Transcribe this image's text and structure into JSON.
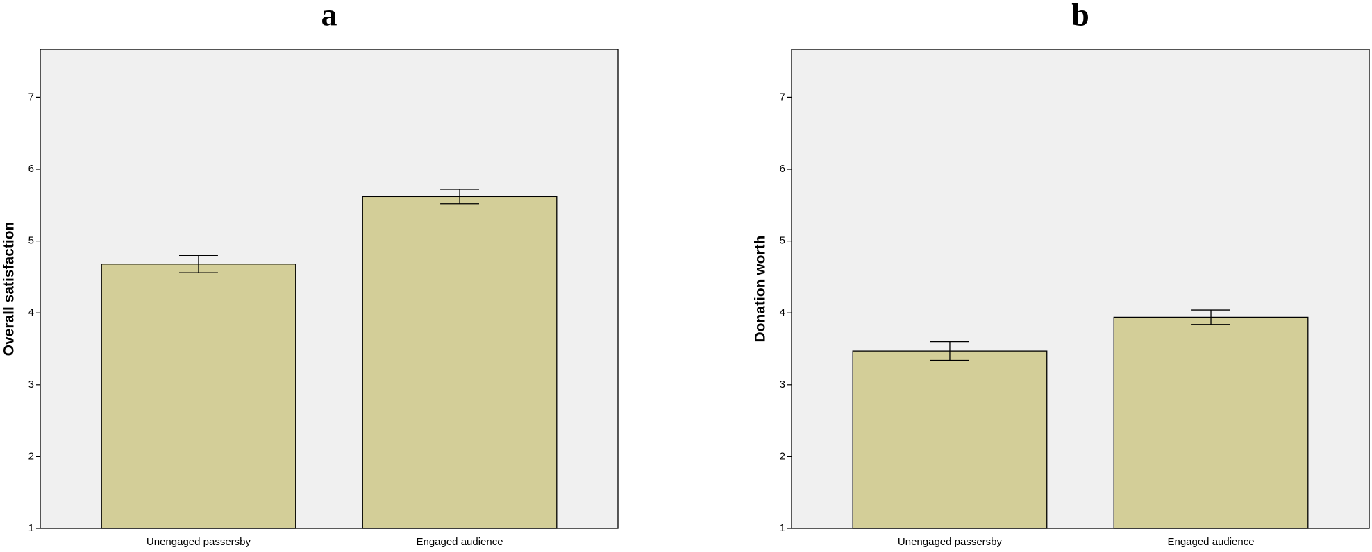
{
  "chart_data": [
    {
      "type": "bar",
      "title": "a",
      "y_label": "Overall satisfaction",
      "categories": [
        "Unengaged passersby",
        "Engaged audience"
      ],
      "values": [
        4.68,
        5.62
      ],
      "errors": [
        0.12,
        0.1
      ],
      "color": "#d3ce98",
      "ylim": [
        1,
        7.67
      ],
      "yticks": [
        1,
        2,
        3,
        4,
        5,
        6,
        7
      ]
    },
    {
      "type": "bar",
      "title": "b",
      "y_label": "Donation worth",
      "categories": [
        "Unengaged passersby",
        "Engaged audience"
      ],
      "values": [
        3.47,
        3.94
      ],
      "errors": [
        0.13,
        0.1
      ],
      "color": "#d3ce98",
      "ylim": [
        1,
        7.67
      ],
      "yticks": [
        1,
        2,
        3,
        4,
        5,
        6,
        7
      ]
    }
  ]
}
